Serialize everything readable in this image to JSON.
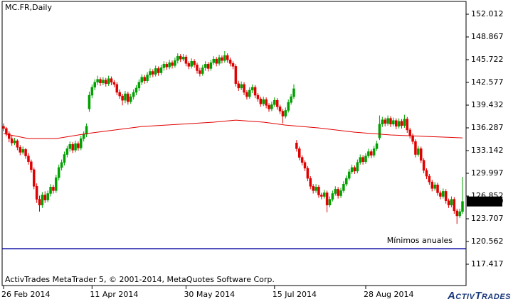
{
  "chart_data": {
    "type": "candlestick",
    "title": "MC.FR,Daily",
    "footer": "ActivTrades MetaTrader 5, © 2001-2014, MetaQuotes Software Corp.",
    "logo": "ActivTrades",
    "up_color": "#00a000",
    "down_color": "#e00000",
    "ylim": [
      114.469,
      153.781
    ],
    "yticks": [
      152.012,
      148.867,
      145.722,
      142.577,
      139.432,
      136.287,
      133.142,
      129.997,
      126.852,
      123.707,
      120.562,
      117.417
    ],
    "xticks": [
      {
        "value": 0,
        "label": "26 Feb 2014"
      },
      {
        "value": 32,
        "label": "11 Apr 2014"
      },
      {
        "value": 66,
        "label": "30 May 2014"
      },
      {
        "value": 98,
        "label": "15 Jul 2014"
      },
      {
        "value": 131,
        "label": "28 Aug 2014"
      }
    ],
    "last_price": {
      "value": 126.1,
      "label": "126.100"
    },
    "level": {
      "label": "Mínimos anuales",
      "value": 119.56,
      "color": "#0000a0"
    },
    "ma": {
      "color": "#e00000",
      "x": [
        0,
        9,
        19,
        30,
        40,
        50,
        63,
        76,
        84,
        94,
        102,
        114,
        127,
        140,
        153,
        166
      ],
      "values": [
        135.49,
        134.8,
        134.8,
        135.49,
        135.98,
        136.47,
        136.77,
        137.07,
        137.36,
        137.07,
        136.67,
        136.28,
        135.69,
        135.3,
        135.1,
        134.9
      ]
    },
    "ohlc": [
      [
        136.5,
        136.9,
        135.8,
        136.2
      ],
      [
        136.2,
        136.4,
        135.1,
        135.5
      ],
      [
        135.5,
        135.8,
        134.3,
        134.8
      ],
      [
        134.8,
        135.2,
        133.8,
        134.2
      ],
      [
        134.2,
        134.9,
        133.9,
        134.5
      ],
      [
        134.5,
        134.7,
        133.2,
        133.6
      ],
      [
        133.6,
        133.9,
        132.5,
        132.9
      ],
      [
        132.9,
        133.7,
        132.6,
        133.3
      ],
      [
        133.3,
        133.5,
        132.0,
        132.4
      ],
      [
        132.4,
        132.8,
        131.2,
        131.6
      ],
      [
        131.6,
        131.9,
        130.1,
        130.5
      ],
      [
        130.5,
        130.8,
        127.8,
        128.2
      ],
      [
        128.2,
        128.6,
        125.9,
        126.4
      ],
      [
        126.4,
        126.9,
        124.7,
        125.6
      ],
      [
        125.6,
        127.4,
        125.2,
        127.0
      ],
      [
        127.0,
        127.5,
        125.9,
        126.3
      ],
      [
        126.3,
        127.6,
        126.0,
        127.2
      ],
      [
        127.2,
        128.5,
        126.8,
        128.1
      ],
      [
        128.1,
        128.4,
        127.2,
        127.6
      ],
      [
        127.6,
        129.8,
        127.3,
        129.4
      ],
      [
        129.4,
        131.2,
        129.0,
        130.8
      ],
      [
        130.8,
        131.9,
        130.4,
        131.5
      ],
      [
        131.5,
        133.0,
        131.1,
        132.6
      ],
      [
        132.6,
        133.8,
        132.2,
        133.4
      ],
      [
        133.4,
        134.4,
        133.0,
        134.0
      ],
      [
        134.0,
        134.3,
        132.8,
        133.2
      ],
      [
        133.2,
        134.5,
        132.9,
        134.1
      ],
      [
        134.1,
        134.4,
        133.1,
        133.5
      ],
      [
        133.5,
        135.2,
        133.2,
        134.8
      ],
      [
        134.8,
        135.8,
        134.4,
        135.4
      ],
      [
        135.4,
        136.9,
        135.0,
        136.5
      ],
      [
        138.9,
        141.3,
        138.5,
        140.8
      ],
      [
        140.8,
        142.3,
        140.4,
        141.9
      ],
      [
        141.9,
        143.0,
        141.5,
        142.6
      ],
      [
        142.6,
        143.5,
        142.2,
        143.0
      ],
      [
        143.0,
        143.3,
        142.1,
        142.5
      ],
      [
        142.5,
        143.3,
        142.2,
        142.9
      ],
      [
        142.9,
        143.2,
        142.0,
        142.4
      ],
      [
        142.4,
        143.5,
        142.1,
        143.1
      ],
      [
        143.1,
        143.4,
        142.2,
        142.6
      ],
      [
        142.6,
        142.9,
        141.9,
        142.3
      ],
      [
        142.3,
        142.6,
        140.8,
        141.2
      ],
      [
        141.2,
        141.6,
        140.3,
        140.7
      ],
      [
        140.7,
        141.0,
        139.4,
        140.1
      ],
      [
        140.1,
        141.4,
        139.7,
        141.0
      ],
      [
        141.0,
        141.3,
        139.5,
        139.9
      ],
      [
        139.9,
        141.0,
        139.6,
        140.6
      ],
      [
        140.6,
        141.6,
        140.2,
        141.2
      ],
      [
        141.2,
        142.2,
        140.8,
        141.8
      ],
      [
        141.8,
        143.0,
        141.4,
        142.6
      ],
      [
        142.6,
        143.7,
        142.2,
        143.3
      ],
      [
        143.3,
        143.6,
        142.4,
        142.8
      ],
      [
        142.8,
        144.0,
        142.5,
        143.6
      ],
      [
        143.6,
        144.5,
        143.2,
        144.1
      ],
      [
        144.1,
        144.4,
        143.3,
        143.7
      ],
      [
        143.7,
        144.9,
        143.4,
        144.5
      ],
      [
        144.5,
        144.8,
        143.5,
        143.9
      ],
      [
        143.9,
        145.0,
        143.6,
        144.6
      ],
      [
        144.6,
        145.5,
        144.2,
        145.1
      ],
      [
        145.1,
        145.4,
        144.3,
        144.7
      ],
      [
        144.7,
        145.7,
        144.4,
        145.3
      ],
      [
        145.3,
        145.6,
        144.5,
        144.9
      ],
      [
        144.9,
        146.0,
        144.6,
        145.6
      ],
      [
        145.6,
        146.6,
        145.2,
        146.2
      ],
      [
        146.2,
        146.5,
        145.4,
        145.8
      ],
      [
        145.8,
        146.5,
        145.5,
        146.1
      ],
      [
        146.1,
        146.4,
        144.8,
        145.2
      ],
      [
        145.2,
        145.5,
        144.4,
        144.8
      ],
      [
        144.8,
        145.9,
        144.5,
        145.5
      ],
      [
        145.5,
        145.8,
        144.6,
        145.0
      ],
      [
        145.0,
        145.3,
        143.8,
        144.2
      ],
      [
        144.2,
        144.6,
        143.4,
        143.8
      ],
      [
        143.8,
        145.0,
        143.5,
        144.6
      ],
      [
        144.6,
        145.5,
        144.2,
        145.1
      ],
      [
        145.1,
        145.4,
        144.1,
        144.5
      ],
      [
        144.5,
        145.7,
        144.2,
        145.3
      ],
      [
        145.3,
        146.2,
        145.0,
        145.8
      ],
      [
        145.8,
        146.1,
        144.8,
        145.2
      ],
      [
        145.2,
        146.4,
        144.9,
        146.0
      ],
      [
        146.0,
        146.3,
        145.2,
        145.6
      ],
      [
        145.6,
        146.9,
        145.3,
        146.3
      ],
      [
        146.3,
        146.6,
        145.3,
        145.7
      ],
      [
        145.7,
        146.0,
        144.8,
        145.2
      ],
      [
        145.2,
        145.5,
        144.4,
        144.8
      ],
      [
        144.8,
        145.1,
        142.0,
        142.4
      ],
      [
        142.4,
        142.8,
        141.4,
        141.8
      ],
      [
        141.8,
        142.7,
        141.5,
        142.3
      ],
      [
        142.3,
        142.6,
        140.8,
        141.2
      ],
      [
        141.2,
        141.5,
        140.2,
        140.6
      ],
      [
        140.6,
        141.9,
        140.3,
        141.5
      ],
      [
        141.5,
        142.3,
        141.1,
        141.9
      ],
      [
        141.9,
        142.2,
        140.4,
        140.8
      ],
      [
        140.8,
        141.1,
        139.9,
        140.3
      ],
      [
        140.3,
        140.6,
        139.2,
        139.6
      ],
      [
        139.6,
        140.6,
        139.3,
        140.2
      ],
      [
        140.2,
        140.5,
        139.0,
        139.4
      ],
      [
        139.4,
        139.7,
        138.5,
        138.9
      ],
      [
        138.9,
        139.9,
        138.6,
        139.5
      ],
      [
        139.5,
        140.5,
        139.2,
        140.1
      ],
      [
        140.1,
        140.4,
        138.8,
        139.2
      ],
      [
        139.2,
        139.5,
        138.2,
        138.6
      ],
      [
        138.6,
        138.9,
        136.9,
        137.9
      ],
      [
        137.9,
        139.1,
        137.6,
        138.7
      ],
      [
        138.7,
        140.2,
        138.4,
        139.8
      ],
      [
        139.8,
        141.0,
        139.5,
        140.6
      ],
      [
        140.6,
        142.3,
        140.3,
        141.7
      ],
      [
        134.2,
        134.6,
        133.0,
        133.4
      ],
      [
        133.4,
        133.7,
        131.8,
        132.2
      ],
      [
        132.2,
        132.5,
        131.1,
        131.5
      ],
      [
        131.5,
        131.8,
        130.3,
        130.7
      ],
      [
        130.7,
        131.0,
        128.9,
        129.3
      ],
      [
        129.3,
        129.6,
        127.8,
        128.2
      ],
      [
        128.2,
        128.5,
        127.2,
        127.6
      ],
      [
        127.6,
        128.5,
        127.3,
        128.1
      ],
      [
        128.1,
        128.4,
        126.6,
        127.0
      ],
      [
        127.0,
        127.3,
        126.4,
        126.8
      ],
      [
        126.8,
        127.7,
        126.5,
        127.3
      ],
      [
        127.3,
        127.6,
        124.6,
        125.6
      ],
      [
        125.6,
        126.8,
        125.3,
        126.4
      ],
      [
        126.4,
        127.6,
        126.1,
        127.2
      ],
      [
        127.2,
        128.2,
        126.9,
        127.8
      ],
      [
        127.8,
        128.1,
        126.5,
        126.9
      ],
      [
        126.9,
        128.0,
        126.6,
        127.6
      ],
      [
        127.6,
        128.9,
        127.3,
        128.5
      ],
      [
        128.5,
        129.7,
        128.2,
        129.3
      ],
      [
        129.3,
        130.6,
        129.0,
        130.2
      ],
      [
        130.2,
        131.2,
        129.9,
        130.8
      ],
      [
        130.8,
        131.1,
        129.9,
        130.3
      ],
      [
        130.3,
        131.9,
        130.0,
        131.5
      ],
      [
        131.5,
        132.6,
        131.2,
        132.2
      ],
      [
        132.2,
        132.5,
        131.2,
        131.6
      ],
      [
        131.6,
        132.8,
        131.3,
        132.4
      ],
      [
        132.4,
        133.4,
        132.1,
        133.0
      ],
      [
        133.0,
        133.3,
        132.1,
        132.5
      ],
      [
        132.5,
        133.8,
        132.2,
        133.4
      ],
      [
        133.4,
        134.5,
        133.1,
        134.1
      ],
      [
        134.9,
        138.0,
        134.6,
        136.8
      ],
      [
        136.8,
        137.8,
        136.4,
        137.4
      ],
      [
        137.4,
        137.7,
        136.5,
        136.9
      ],
      [
        136.9,
        138.0,
        136.6,
        137.6
      ],
      [
        137.6,
        137.9,
        136.4,
        136.8
      ],
      [
        136.8,
        137.7,
        136.5,
        137.3
      ],
      [
        137.3,
        137.6,
        136.1,
        136.5
      ],
      [
        136.5,
        137.6,
        136.2,
        137.2
      ],
      [
        137.2,
        137.5,
        136.2,
        136.6
      ],
      [
        136.6,
        138.1,
        136.3,
        137.5
      ],
      [
        137.5,
        137.8,
        135.6,
        136.0
      ],
      [
        136.0,
        136.3,
        134.8,
        135.2
      ],
      [
        135.2,
        135.5,
        134.0,
        134.4
      ],
      [
        134.4,
        134.7,
        132.2,
        132.6
      ],
      [
        132.6,
        133.8,
        132.3,
        133.4
      ],
      [
        133.4,
        133.7,
        131.4,
        131.8
      ],
      [
        131.8,
        132.1,
        130.0,
        130.4
      ],
      [
        130.4,
        130.7,
        129.2,
        129.6
      ],
      [
        129.6,
        129.9,
        128.4,
        128.8
      ],
      [
        128.8,
        129.1,
        127.5,
        127.9
      ],
      [
        127.9,
        128.8,
        127.6,
        128.4
      ],
      [
        128.4,
        128.7,
        126.9,
        127.3
      ],
      [
        127.3,
        127.6,
        126.4,
        126.8
      ],
      [
        126.8,
        127.9,
        126.5,
        127.5
      ],
      [
        127.5,
        127.8,
        125.8,
        126.2
      ],
      [
        126.2,
        126.5,
        125.2,
        125.6
      ],
      [
        125.6,
        126.8,
        125.3,
        126.4
      ],
      [
        126.4,
        126.7,
        124.4,
        124.8
      ],
      [
        124.8,
        125.1,
        123.0,
        124.1
      ],
      [
        124.1,
        125.1,
        123.8,
        124.7
      ],
      [
        124.7,
        129.5,
        124.4,
        126.1
      ]
    ]
  }
}
